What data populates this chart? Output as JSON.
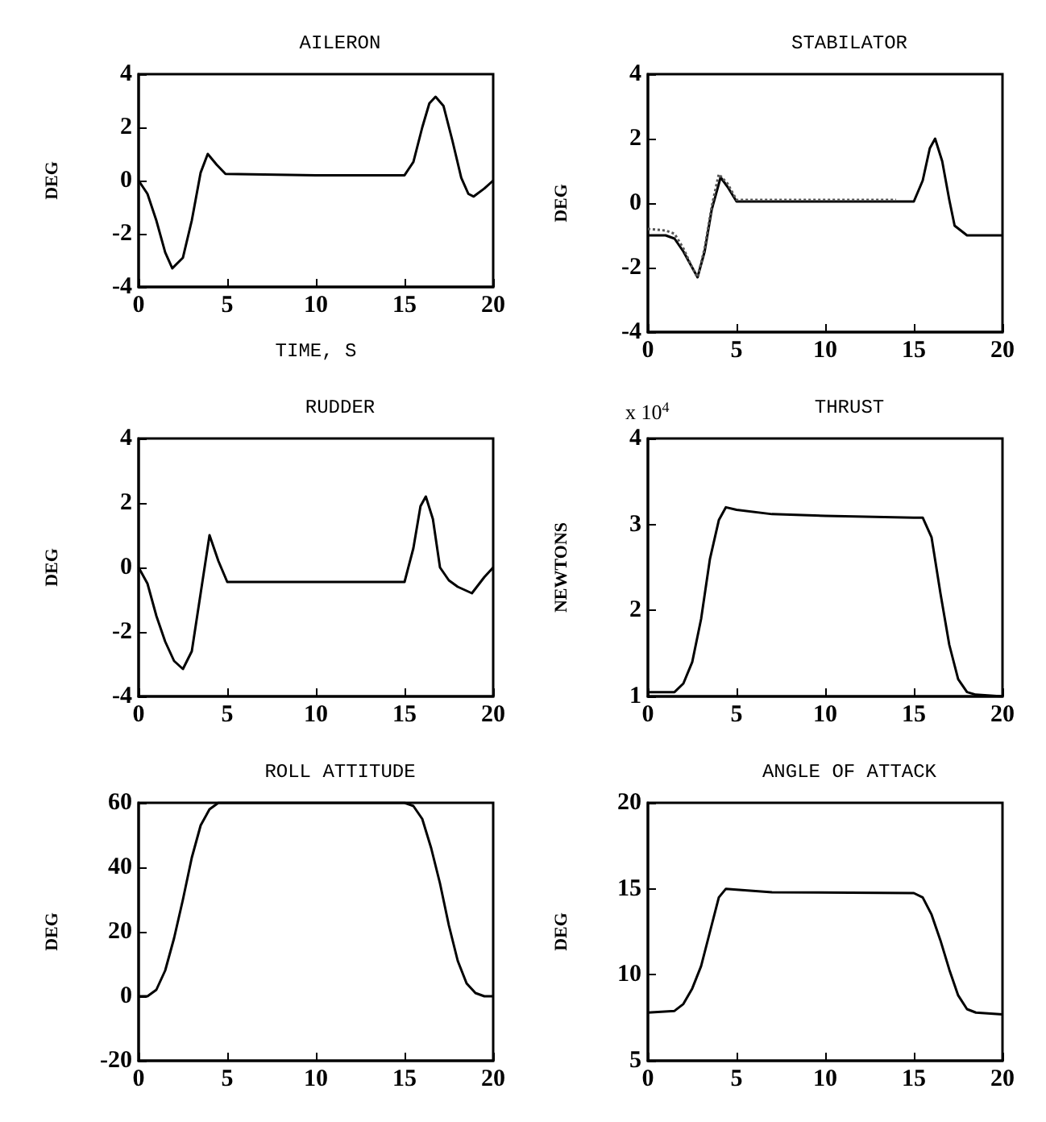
{
  "chart_data": [
    {
      "type": "line",
      "title": "AILERON",
      "xlabel": "TIME, S",
      "ylabel": "DEG",
      "xlim": [
        0,
        20
      ],
      "xticks": [
        0,
        5,
        10,
        15,
        20
      ],
      "ylim": [
        -4,
        4
      ],
      "yticks": [
        -4,
        -2,
        0,
        2,
        4
      ],
      "series": [
        {
          "color": "#000000",
          "x": [
            0,
            0.5,
            1,
            1.5,
            1.9,
            2.5,
            3,
            3.5,
            3.9,
            4.4,
            4.9,
            10,
            15,
            15.5,
            16,
            16.4,
            16.75,
            17.2,
            17.7,
            18.2,
            18.6,
            18.9,
            19.5,
            20
          ],
          "values": [
            0,
            -0.5,
            -1.5,
            -2.7,
            -3.3,
            -2.9,
            -1.5,
            0.3,
            1.0,
            0.6,
            0.25,
            0.2,
            0.2,
            0.7,
            2.0,
            2.9,
            3.15,
            2.8,
            1.5,
            0.1,
            -0.5,
            -0.6,
            -0.3,
            0
          ]
        }
      ]
    },
    {
      "type": "line",
      "title": "STABILATOR",
      "ylabel": "DEG",
      "xlim": [
        0,
        20
      ],
      "xticks": [
        0,
        5,
        10,
        15,
        20
      ],
      "ylim": [
        -4,
        4
      ],
      "yticks": [
        -4,
        -2,
        0,
        2,
        4
      ],
      "series": [
        {
          "color": "#000000",
          "x": [
            0,
            1,
            1.5,
            2,
            2.5,
            2.8,
            3.2,
            3.6,
            4.1,
            4.5,
            5,
            10,
            15,
            15.5,
            15.9,
            16.2,
            16.6,
            17,
            17.3,
            18,
            20
          ],
          "values": [
            -1.0,
            -1.0,
            -1.1,
            -1.5,
            -2.0,
            -2.3,
            -1.5,
            -0.2,
            0.8,
            0.5,
            0.05,
            0.05,
            0.05,
            0.7,
            1.7,
            2.0,
            1.3,
            0.1,
            -0.7,
            -1.0,
            -1.0
          ]
        },
        {
          "color": "#555555",
          "line_style": "dotted",
          "x": [
            0,
            1,
            1.5,
            2,
            2.5,
            2.8,
            3.2,
            3.6,
            4.0,
            4.5,
            5,
            10,
            14
          ],
          "values": [
            -0.8,
            -0.85,
            -0.95,
            -1.4,
            -2.0,
            -2.3,
            -1.4,
            -0.1,
            0.9,
            0.6,
            0.1,
            0.1,
            0.1
          ]
        }
      ]
    },
    {
      "type": "line",
      "title": "RUDDER",
      "ylabel": "DEG",
      "xlim": [
        0,
        20
      ],
      "xticks": [
        0,
        5,
        10,
        15,
        20
      ],
      "ylim": [
        -4,
        4
      ],
      "yticks": [
        -4,
        -2,
        0,
        2,
        4
      ],
      "series": [
        {
          "color": "#000000",
          "x": [
            0,
            0.5,
            1,
            1.5,
            2,
            2.5,
            3,
            3.5,
            4,
            4.5,
            5,
            10,
            15,
            15.5,
            15.9,
            16.2,
            16.6,
            17,
            17.5,
            18,
            18.8,
            19.5,
            20
          ],
          "values": [
            0,
            -0.5,
            -1.5,
            -2.3,
            -2.9,
            -3.15,
            -2.6,
            -0.8,
            1.0,
            0.2,
            -0.45,
            -0.45,
            -0.45,
            0.6,
            1.9,
            2.2,
            1.5,
            0.0,
            -0.4,
            -0.6,
            -0.8,
            -0.3,
            0
          ]
        }
      ]
    },
    {
      "type": "line",
      "title": "THRUST",
      "ylabel": "NEWTONS",
      "annotations": [
        "x 10$^{4}$"
      ],
      "xlim": [
        0,
        20
      ],
      "xticks": [
        0,
        5,
        10,
        15,
        20
      ],
      "ylim": [
        1,
        4
      ],
      "yticks": [
        1,
        2,
        3,
        4
      ],
      "series": [
        {
          "color": "#000000",
          "x": [
            0,
            1.5,
            2,
            2.5,
            3,
            3.5,
            4,
            4.4,
            5,
            7,
            10,
            15,
            15.5,
            16,
            16.5,
            17,
            17.5,
            18,
            18.5,
            20
          ],
          "values": [
            1.05,
            1.05,
            1.15,
            1.4,
            1.9,
            2.6,
            3.05,
            3.2,
            3.17,
            3.12,
            3.1,
            3.08,
            3.08,
            2.85,
            2.2,
            1.6,
            1.2,
            1.05,
            1.02,
            1.0
          ]
        }
      ]
    },
    {
      "type": "line",
      "title": "ROLL ATTITUDE",
      "ylabel": "DEG",
      "xlim": [
        0,
        20
      ],
      "xticks": [
        0,
        5,
        10,
        15,
        20
      ],
      "ylim": [
        -20,
        60
      ],
      "yticks": [
        -20,
        0,
        20,
        40,
        60
      ],
      "series": [
        {
          "color": "#000000",
          "x": [
            0,
            0.5,
            1,
            1.5,
            2,
            2.5,
            3,
            3.5,
            4,
            4.5,
            15,
            15.5,
            16,
            16.5,
            17,
            17.5,
            18,
            18.5,
            19,
            19.5,
            20
          ],
          "values": [
            0,
            0,
            2,
            8,
            18,
            30,
            43,
            53,
            58,
            60,
            60,
            59,
            55,
            46,
            35,
            22,
            11,
            4,
            1,
            0,
            0
          ]
        }
      ]
    },
    {
      "type": "line",
      "title": "ANGLE OF ATTACK",
      "ylabel": "DEG",
      "xlim": [
        0,
        20
      ],
      "xticks": [
        0,
        5,
        10,
        15,
        20
      ],
      "ylim": [
        5,
        20
      ],
      "yticks": [
        5,
        10,
        15,
        20
      ],
      "series": [
        {
          "color": "#000000",
          "x": [
            0,
            1.5,
            2,
            2.5,
            3,
            3.5,
            4,
            4.4,
            5,
            7,
            15,
            15.5,
            16,
            16.5,
            17,
            17.5,
            18,
            18.5,
            20
          ],
          "values": [
            7.8,
            7.9,
            8.3,
            9.2,
            10.5,
            12.5,
            14.5,
            15.0,
            14.95,
            14.8,
            14.75,
            14.5,
            13.5,
            12,
            10.3,
            8.8,
            8.0,
            7.8,
            7.7
          ]
        }
      ]
    }
  ]
}
